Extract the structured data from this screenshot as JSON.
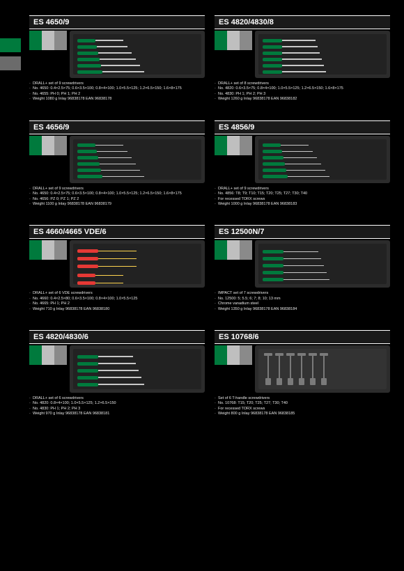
{
  "side": {
    "tabs": [
      "green",
      "gray"
    ]
  },
  "left": [
    {
      "code": "ES 4650/9",
      "img": "green-set-9",
      "desc": [
        "DRALL+ set of 9 screwdrivers",
        "No. 4650: 0.4×2.5×75; 0.6×3.5×100; 0.8×4×100; 1.0×5.5×125; 1.2×6.5×150; 1.6×8×175",
        "No. 4655: PH 0; PH 1; PH 2",
        "Weight 1080 g   Inlay 96838178   EAN 96838178"
      ]
    },
    {
      "code": "ES 4656/9",
      "img": "green-set-9",
      "desc": [
        "DRALL+ set of 9 screwdrivers",
        "No. 4650: 0.4×2.5×75; 0.6×3.5×100; 0.8×4×100; 1.0×5.5×125; 1.2×6.5×150; 1.6×8×175",
        "No. 4656: PZ 0; PZ 1; PZ 2",
        "Weight 1100 g   Inlay 96838178   EAN 96838179"
      ]
    },
    {
      "code": "ES 4660/4665 VDE/6",
      "img": "vde-set",
      "desc": [
        "DRALL+ set of 6 VDE screwdrivers",
        "No. 4660: 0.4×2.5×80; 0.6×3.5×100; 0.8×4×100; 1.0×5.5×125",
        "No. 4665: PH 1; PH 2",
        "Weight 710 g   Inlay 96838178   EAN 96838180"
      ]
    },
    {
      "code": "ES 4820/4830/6",
      "img": "green-set-6",
      "desc": [
        "DRALL+ set of 6 screwdrivers",
        "No. 4820: 0.8×4×100; 1.0×5.5×125; 1.2×6.5×150",
        "No. 4830: PH 1; PH 2; PH 3",
        "Weight 970 g   Inlay 96838178   EAN 96838181"
      ]
    }
  ],
  "right": [
    {
      "code": "ES 4820/4830/8",
      "img": "green-set-8",
      "desc": [
        "DRALL+ set of 8 screwdrivers",
        "No. 4820: 0.6×3.5×75; 0.8×4×100; 1.0×5.5×125; 1.2×6.5×150; 1.6×8×175",
        "No. 4830: PH 1; PH 2; PH 3",
        "Weight 1260 g   Inlay 96838178   EAN 96838182"
      ]
    },
    {
      "code": "ES 4856/9",
      "img": "green-set-9b",
      "desc": [
        "DRALL+ set of 9 screwdrivers",
        "No. 4856: T8; T9; T10; T15; T20; T25; T27; T30; T40",
        "For recessed TORX screws",
        "Weight 1000 g   Inlay 96838178   EAN 96838183"
      ]
    },
    {
      "code": "ES 12500N/7",
      "img": "green-set-7",
      "desc": [
        "IMPACT set of 7 screwdrivers",
        "No. 12500: 5; 5.5; 6; 7; 8; 10; 13 mm",
        "Chrome vanadium steel",
        "Weight 1350 g   Inlay 96838178   EAN 96838184"
      ]
    },
    {
      "code": "ES 10768/6",
      "img": "t-handle",
      "desc": [
        "Set of 6 T-handle screwdrivers",
        "No. 10768: T15; T20; T25; T27; T30; T40",
        "For recessed TORX screws",
        "Weight 800 g   Inlay 96838178   EAN 96838185"
      ]
    }
  ],
  "colors": {
    "green": "#007a3d",
    "darkgreen": "#044",
    "shaft": "#c8c8c8",
    "redh": "#e53935",
    "yellowh": "#ffd54f",
    "graytool": "#7a7a7a"
  }
}
